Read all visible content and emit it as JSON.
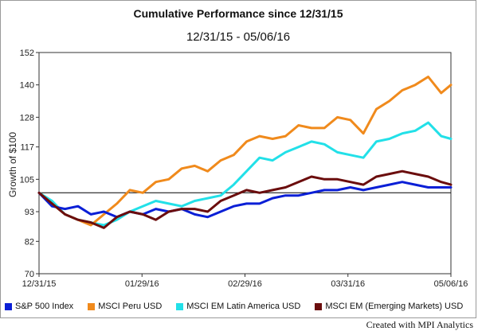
{
  "chart_data": {
    "type": "line",
    "title": "Cumulative Performance since 12/31/15",
    "subtitle": "12/31/15 - 05/06/16",
    "ylabel": "Growth of $100",
    "ylim": [
      70,
      152
    ],
    "yticks": [
      70,
      82,
      93,
      105,
      117,
      128,
      140,
      152
    ],
    "xticks": [
      "12/31/15",
      "01/29/16",
      "02/29/16",
      "03/31/16",
      "05/06/16"
    ],
    "xrange_days": [
      0,
      127
    ],
    "baseline": 100,
    "series": [
      {
        "name": "S&P 500 Index",
        "color": "#0a1fd6",
        "x": [
          0,
          4,
          8,
          12,
          16,
          20,
          24,
          28,
          32,
          36,
          40,
          44,
          48,
          52,
          56,
          60,
          64,
          68,
          72,
          76,
          80,
          84,
          88,
          92,
          96,
          100,
          104,
          108,
          112,
          116,
          120,
          124,
          127
        ],
        "values": [
          100,
          95,
          94,
          95,
          92,
          93,
          91,
          93,
          92,
          94,
          93,
          94,
          92,
          91,
          93,
          95,
          96,
          96,
          98,
          99,
          99,
          100,
          101,
          101,
          102,
          101,
          102,
          103,
          104,
          103,
          102,
          102,
          102
        ]
      },
      {
        "name": "MSCI Peru USD",
        "color": "#f08a1c",
        "x": [
          0,
          4,
          8,
          12,
          16,
          20,
          24,
          28,
          32,
          36,
          40,
          44,
          48,
          52,
          56,
          60,
          64,
          68,
          72,
          76,
          80,
          84,
          88,
          92,
          96,
          100,
          104,
          108,
          112,
          116,
          120,
          124,
          127
        ],
        "values": [
          100,
          96,
          92,
          90,
          88,
          92,
          96,
          101,
          100,
          104,
          105,
          109,
          110,
          108,
          112,
          114,
          119,
          121,
          120,
          121,
          125,
          124,
          124,
          128,
          127,
          122,
          131,
          134,
          138,
          140,
          143,
          137,
          140
        ]
      },
      {
        "name": "MSCI EM Latin America USD",
        "color": "#22e0e8",
        "x": [
          0,
          4,
          8,
          12,
          16,
          20,
          24,
          28,
          32,
          36,
          40,
          44,
          48,
          52,
          56,
          60,
          64,
          68,
          72,
          76,
          80,
          84,
          88,
          92,
          96,
          100,
          104,
          108,
          112,
          116,
          120,
          124,
          127
        ],
        "values": [
          100,
          97,
          92,
          90,
          89,
          88,
          90,
          93,
          95,
          97,
          96,
          95,
          97,
          98,
          99,
          103,
          108,
          113,
          112,
          115,
          117,
          119,
          118,
          115,
          114,
          113,
          119,
          120,
          122,
          123,
          126,
          121,
          120
        ]
      },
      {
        "name": "MSCI EM (Emerging Markets) USD",
        "color": "#6b0d0d",
        "x": [
          0,
          4,
          8,
          12,
          16,
          20,
          24,
          28,
          32,
          36,
          40,
          44,
          48,
          52,
          56,
          60,
          64,
          68,
          72,
          76,
          80,
          84,
          88,
          92,
          96,
          100,
          104,
          108,
          112,
          116,
          120,
          124,
          127
        ],
        "values": [
          100,
          96,
          92,
          90,
          89,
          87,
          91,
          93,
          92,
          90,
          93,
          94,
          94,
          93,
          97,
          99,
          101,
          100,
          101,
          102,
          104,
          106,
          105,
          105,
          104,
          103,
          106,
          107,
          108,
          107,
          106,
          104,
          103
        ]
      }
    ],
    "legend_position": "bottom"
  },
  "footer": "Created with MPI Analytics"
}
